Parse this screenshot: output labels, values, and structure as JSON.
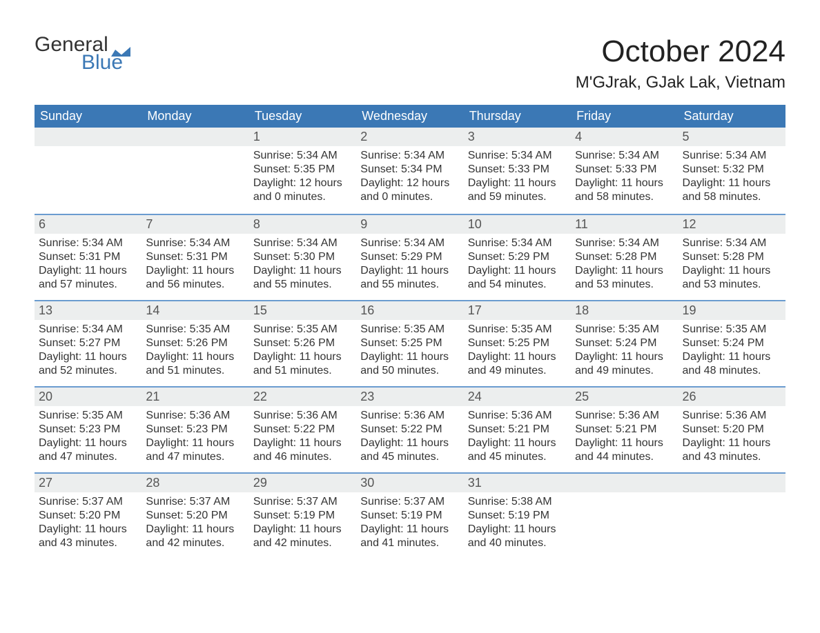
{
  "brand": {
    "line1": "General",
    "line2": "Blue",
    "color_text": "#333333",
    "color_accent": "#3b78b5"
  },
  "title": "October 2024",
  "location": "M'GJrak, GJak Lak, Vietnam",
  "colors": {
    "header_bg": "#3b78b5",
    "header_text": "#ffffff",
    "daynum_bg": "#eceeee",
    "week_border": "#6a9bcf",
    "body_text": "#333333",
    "page_bg": "#ffffff"
  },
  "fonts": {
    "title_size_pt": 33,
    "subtitle_size_pt": 18,
    "dow_size_pt": 14,
    "body_size_pt": 12
  },
  "labels": {
    "sunrise": "Sunrise: ",
    "sunset": "Sunset: ",
    "daylight": "Daylight: "
  },
  "days_of_week": [
    "Sunday",
    "Monday",
    "Tuesday",
    "Wednesday",
    "Thursday",
    "Friday",
    "Saturday"
  ],
  "weeks": [
    [
      null,
      null,
      {
        "n": "1",
        "sunrise": "5:34 AM",
        "sunset": "5:35 PM",
        "daylight": "12 hours and 0 minutes."
      },
      {
        "n": "2",
        "sunrise": "5:34 AM",
        "sunset": "5:34 PM",
        "daylight": "12 hours and 0 minutes."
      },
      {
        "n": "3",
        "sunrise": "5:34 AM",
        "sunset": "5:33 PM",
        "daylight": "11 hours and 59 minutes."
      },
      {
        "n": "4",
        "sunrise": "5:34 AM",
        "sunset": "5:33 PM",
        "daylight": "11 hours and 58 minutes."
      },
      {
        "n": "5",
        "sunrise": "5:34 AM",
        "sunset": "5:32 PM",
        "daylight": "11 hours and 58 minutes."
      }
    ],
    [
      {
        "n": "6",
        "sunrise": "5:34 AM",
        "sunset": "5:31 PM",
        "daylight": "11 hours and 57 minutes."
      },
      {
        "n": "7",
        "sunrise": "5:34 AM",
        "sunset": "5:31 PM",
        "daylight": "11 hours and 56 minutes."
      },
      {
        "n": "8",
        "sunrise": "5:34 AM",
        "sunset": "5:30 PM",
        "daylight": "11 hours and 55 minutes."
      },
      {
        "n": "9",
        "sunrise": "5:34 AM",
        "sunset": "5:29 PM",
        "daylight": "11 hours and 55 minutes."
      },
      {
        "n": "10",
        "sunrise": "5:34 AM",
        "sunset": "5:29 PM",
        "daylight": "11 hours and 54 minutes."
      },
      {
        "n": "11",
        "sunrise": "5:34 AM",
        "sunset": "5:28 PM",
        "daylight": "11 hours and 53 minutes."
      },
      {
        "n": "12",
        "sunrise": "5:34 AM",
        "sunset": "5:28 PM",
        "daylight": "11 hours and 53 minutes."
      }
    ],
    [
      {
        "n": "13",
        "sunrise": "5:34 AM",
        "sunset": "5:27 PM",
        "daylight": "11 hours and 52 minutes."
      },
      {
        "n": "14",
        "sunrise": "5:35 AM",
        "sunset": "5:26 PM",
        "daylight": "11 hours and 51 minutes."
      },
      {
        "n": "15",
        "sunrise": "5:35 AM",
        "sunset": "5:26 PM",
        "daylight": "11 hours and 51 minutes."
      },
      {
        "n": "16",
        "sunrise": "5:35 AM",
        "sunset": "5:25 PM",
        "daylight": "11 hours and 50 minutes."
      },
      {
        "n": "17",
        "sunrise": "5:35 AM",
        "sunset": "5:25 PM",
        "daylight": "11 hours and 49 minutes."
      },
      {
        "n": "18",
        "sunrise": "5:35 AM",
        "sunset": "5:24 PM",
        "daylight": "11 hours and 49 minutes."
      },
      {
        "n": "19",
        "sunrise": "5:35 AM",
        "sunset": "5:24 PM",
        "daylight": "11 hours and 48 minutes."
      }
    ],
    [
      {
        "n": "20",
        "sunrise": "5:35 AM",
        "sunset": "5:23 PM",
        "daylight": "11 hours and 47 minutes."
      },
      {
        "n": "21",
        "sunrise": "5:36 AM",
        "sunset": "5:23 PM",
        "daylight": "11 hours and 47 minutes."
      },
      {
        "n": "22",
        "sunrise": "5:36 AM",
        "sunset": "5:22 PM",
        "daylight": "11 hours and 46 minutes."
      },
      {
        "n": "23",
        "sunrise": "5:36 AM",
        "sunset": "5:22 PM",
        "daylight": "11 hours and 45 minutes."
      },
      {
        "n": "24",
        "sunrise": "5:36 AM",
        "sunset": "5:21 PM",
        "daylight": "11 hours and 45 minutes."
      },
      {
        "n": "25",
        "sunrise": "5:36 AM",
        "sunset": "5:21 PM",
        "daylight": "11 hours and 44 minutes."
      },
      {
        "n": "26",
        "sunrise": "5:36 AM",
        "sunset": "5:20 PM",
        "daylight": "11 hours and 43 minutes."
      }
    ],
    [
      {
        "n": "27",
        "sunrise": "5:37 AM",
        "sunset": "5:20 PM",
        "daylight": "11 hours and 43 minutes."
      },
      {
        "n": "28",
        "sunrise": "5:37 AM",
        "sunset": "5:20 PM",
        "daylight": "11 hours and 42 minutes."
      },
      {
        "n": "29",
        "sunrise": "5:37 AM",
        "sunset": "5:19 PM",
        "daylight": "11 hours and 42 minutes."
      },
      {
        "n": "30",
        "sunrise": "5:37 AM",
        "sunset": "5:19 PM",
        "daylight": "11 hours and 41 minutes."
      },
      {
        "n": "31",
        "sunrise": "5:38 AM",
        "sunset": "5:19 PM",
        "daylight": "11 hours and 40 minutes."
      },
      null,
      null
    ]
  ]
}
